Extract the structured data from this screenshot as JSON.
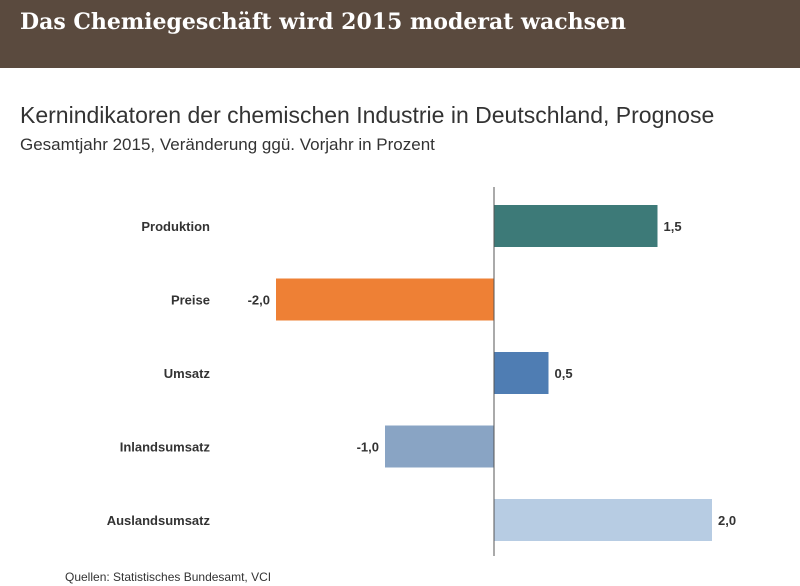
{
  "banner": {
    "title": "Das Chemiegeschäft wird 2015 moderat wachsen"
  },
  "chart_data": {
    "type": "bar",
    "orientation": "horizontal",
    "title": "Kernindikatoren der chemischen Industrie in Deutschland, Prognose",
    "subtitle": "Gesamtjahr 2015, Veränderung ggü. Vorjahr in Prozent",
    "categories": [
      "Produktion",
      "Preise",
      "Umsatz",
      "Inlandsumsatz",
      "Auslandsumsatz"
    ],
    "values": [
      1.5,
      -2.0,
      0.5,
      -1.0,
      2.0
    ],
    "value_labels": [
      "1,5",
      "-2,0",
      "0,5",
      "-1,0",
      "2,0"
    ],
    "colors": [
      "#3d7a78",
      "#ee8035",
      "#4f7db3",
      "#89a4c4",
      "#b7cce3"
    ],
    "xlim": [
      -2.0,
      2.0
    ],
    "grid": false,
    "zero_line": true
  },
  "source": "Quellen: Statistisches Bundesamt, VCI"
}
